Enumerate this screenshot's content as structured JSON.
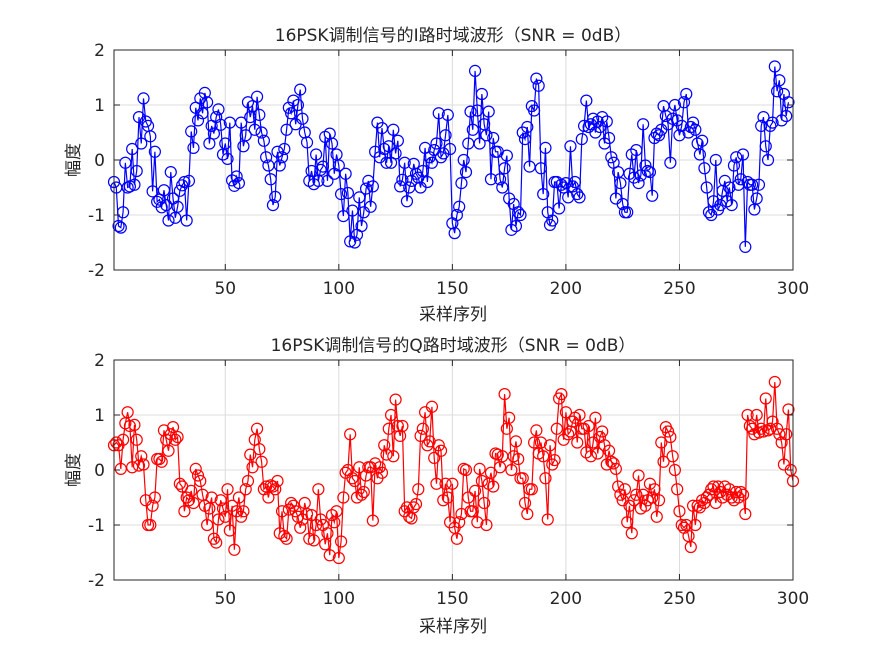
{
  "chart_data": [
    {
      "type": "line",
      "title": "16PSK调制信号的I路时域波形（SNR = 0dB）",
      "xlabel": "采样序列",
      "ylabel": "幅度",
      "xlim": [
        1,
        300
      ],
      "ylim": [
        -2,
        2
      ],
      "xticks": [
        50,
        100,
        150,
        200,
        250,
        300
      ],
      "yticks": [
        -2,
        -1,
        0,
        1,
        2
      ],
      "grid": true,
      "marker": "circle",
      "color": "#0000ff",
      "series": [
        {
          "name": "I路",
          "x_start": 1,
          "x_step": 1,
          "values": [
            -0.4,
            -0.5,
            -1.2,
            -1.23,
            -0.95,
            -0.05,
            -0.5,
            -0.48,
            0.2,
            -0.45,
            -0.2,
            0.78,
            0.3,
            1.12,
            0.7,
            0.62,
            0.43,
            -0.57,
            0.15,
            -0.76,
            -0.72,
            -0.86,
            -0.55,
            -0.82,
            -1.1,
            -0.22,
            -0.7,
            -1.05,
            -0.85,
            -0.56,
            -0.46,
            -0.4,
            -1.1,
            -0.38,
            0.52,
            0.22,
            0.95,
            0.72,
            1.12,
            0.85,
            1.22,
            1.05,
            0.3,
            0.62,
            0.48,
            0.78,
            0.92,
            0.64,
            0.1,
            0.3,
            0.02,
            0.68,
            -0.37,
            -0.47,
            -0.3,
            -0.42,
            0.68,
            0.25,
            0.45,
            1.05,
            0.78,
            0.98,
            0.55,
            1.15,
            0.82,
            0.5,
            0.35,
            0.05,
            -0.1,
            -0.35,
            -0.82,
            -0.67,
            0.15,
            -0.1,
            0.05,
            0.2,
            0.55,
            0.95,
            0.85,
            1.08,
            0.65,
            1.0,
            1.28,
            0.75,
            0.5,
            0.32,
            -0.38,
            -0.2,
            -0.44,
            0.1,
            -0.38,
            -0.18,
            -0.12,
            0.42,
            -0.38,
            0.48,
            0.3,
            -0.25,
            0.1,
            -0.1,
            -0.62,
            -1.02,
            -0.25,
            -0.6,
            -1.48,
            -0.92,
            -1.5,
            -1.36,
            -0.68,
            -1.2,
            -0.95,
            -0.52,
            -0.38,
            -0.85,
            -0.48,
            0.15,
            0.68,
            0.05,
            0.58,
            0.2,
            -0.05,
            0.25,
            -0.05,
            0.55,
            0.12,
            0.35,
            -0.48,
            -0.36,
            -0.05,
            -0.75,
            -0.5,
            -0.38,
            -0.07,
            -0.25,
            -0.32,
            -0.5,
            -0.2,
            0.22,
            -0.4,
            0.05,
            -0.05,
            0.18,
            0.3,
            0.85,
            0.05,
            0.12,
            0.45,
            0.82,
            0.2,
            -1.15,
            -1.33,
            -1.0,
            -0.85,
            -0.42,
            0.0,
            -0.22,
            0.3,
            0.88,
            0.55,
            1.62,
            0.9,
            0.3,
            1.2,
            0.65,
            0.45,
            0.88,
            -0.35,
            0.4,
            0.15,
            0.15,
            -0.35,
            -0.5,
            -0.15,
            0.08,
            -0.7,
            -1.27,
            -0.8,
            -1.2,
            -0.95,
            -1.0,
            0.5,
            0.38,
            0.6,
            -0.12,
            0.98,
            0.9,
            1.48,
            1.35,
            -0.15,
            -0.62,
            0.22,
            -0.95,
            -1.18,
            -1.1,
            -0.4,
            -0.4,
            -0.88,
            -0.45,
            -0.5,
            -0.42,
            -0.68,
            0.25,
            -0.48,
            -0.4,
            -0.62,
            -0.68,
            0.38,
            0.62,
            1.08,
            0.6,
            0.65,
            0.75,
            0.5,
            0.7,
            0.6,
            0.78,
            0.3,
            0.7,
            0.4,
            0.05,
            -0.05,
            -0.7,
            -0.22,
            -0.42,
            -0.8,
            -0.95,
            -0.95,
            -0.25,
            0.1,
            -0.32,
            0.18,
            -0.42,
            -0.28,
            0.65,
            -0.1,
            -0.2,
            -0.22,
            -0.65,
            0.4,
            0.48,
            0.45,
            0.55,
            0.98,
            0.8,
            0.65,
            -0.05,
            0.75,
            1.0,
            0.72,
            0.45,
            0.62,
            1.05,
            1.2,
            0.5,
            0.6,
            0.68,
            0.55,
            0.3,
            0.1,
            0.35,
            -0.15,
            -0.5,
            -0.95,
            -1.0,
            -0.75,
            0.0,
            -0.9,
            -0.82,
            -0.56,
            -0.38,
            -0.75,
            -0.5,
            -0.82,
            -0.1,
            0.05,
            -0.45,
            -0.35,
            0.1,
            -1.58,
            -0.4,
            -0.45,
            -0.45,
            -0.9,
            -0.7,
            -0.45,
            0.62,
            0.78,
            0.25,
            0.0,
            0.62,
            0.68,
            1.7,
            1.25,
            1.45,
            0.72,
            1.2,
            0.8,
            1.05
          ]
        }
      ]
    },
    {
      "type": "line",
      "title": "16PSK调制信号的Q路时域波形（SNR = 0dB）",
      "xlabel": "采样序列",
      "ylabel": "幅度",
      "xlim": [
        1,
        300
      ],
      "ylim": [
        -2,
        2
      ],
      "xticks": [
        50,
        100,
        150,
        200,
        250,
        300
      ],
      "yticks": [
        -2,
        -1,
        0,
        1,
        2
      ],
      "grid": true,
      "marker": "circle",
      "color": "#ff0000",
      "series": [
        {
          "name": "Q路",
          "x_start": 1,
          "x_step": 1,
          "values": [
            0.45,
            0.5,
            0.45,
            0.02,
            0.55,
            0.85,
            1.05,
            0.8,
            0.05,
            0.82,
            0.55,
            0.08,
            0.25,
            0.1,
            -0.55,
            -1.0,
            -1.0,
            -0.65,
            -0.5,
            0.2,
            0.2,
            0.15,
            0.72,
            0.55,
            0.35,
            0.65,
            0.78,
            0.55,
            0.6,
            -0.25,
            -0.3,
            -0.75,
            -0.5,
            -0.55,
            -0.38,
            -0.6,
            0.02,
            -0.1,
            -0.2,
            -0.45,
            -0.65,
            -1.0,
            -0.7,
            -0.5,
            -1.25,
            -1.32,
            -0.9,
            -0.55,
            -0.7,
            -0.85,
            -0.35,
            -1.1,
            -0.65,
            -1.45,
            -0.75,
            -0.5,
            -0.85,
            -0.75,
            -0.35,
            -0.2,
            0.28,
            0.05,
            0.55,
            0.75,
            0.38,
            0.15,
            -0.35,
            -0.3,
            -0.5,
            -0.28,
            -0.3,
            -0.35,
            -0.2,
            -1.15,
            -0.75,
            -1.2,
            -1.25,
            -0.72,
            -0.6,
            -0.65,
            -0.75,
            -0.85,
            -1.05,
            -0.9,
            -0.6,
            -0.8,
            -1.25,
            -0.82,
            -1.28,
            -1.0,
            -0.35,
            -0.9,
            -1.0,
            -1.35,
            -1.15,
            -1.55,
            -0.82,
            -0.95,
            -0.75,
            -1.6,
            -1.3,
            -0.5,
            -0.05,
            0.0,
            0.65,
            -0.15,
            -0.2,
            -0.5,
            0.05,
            -0.45,
            -0.4,
            -0.1,
            0.05,
            0.05,
            -0.92,
            0.12,
            -0.15,
            0.05,
            -0.05,
            0.45,
            0.28,
            0.75,
            1.0,
            0.25,
            1.28,
            0.8,
            0.62,
            0.8,
            -0.75,
            -0.68,
            -0.85,
            -0.88,
            -0.68,
            -0.62,
            -0.35,
            0.62,
            0.75,
            1.05,
            0.45,
            0.52,
            1.15,
            0.22,
            -0.25,
            0.45,
            0.35,
            -0.55,
            -0.25,
            -0.5,
            -0.95,
            -0.25,
            -1.05,
            -1.25,
            -0.95,
            -0.8,
            0.02,
            0.0,
            -0.5,
            -0.75,
            -0.75,
            -0.38,
            -0.95,
            0.02,
            -0.2,
            -0.6,
            -1.0,
            -0.25,
            -0.05,
            -0.3,
            0.3,
            0.28,
            0.05,
            0.25,
            1.38,
            0.75,
            0.95,
            0.0,
            0.25,
            0.52,
            0.2,
            -0.15,
            -0.15,
            -0.6,
            -0.8,
            -0.35,
            -0.35,
            0.5,
            0.72,
            0.3,
            0.5,
            0.25,
            -0.15,
            -0.9,
            0.45,
            0.1,
            0.18,
            0.75,
            1.3,
            1.38,
            0.55,
            1.05,
            0.65,
            0.7,
            0.88,
            0.95,
            0.5,
            1.0,
            0.75,
            0.75,
            0.32,
            0.8,
            0.25,
            0.5,
            0.95,
            0.3,
            0.6,
            0.7,
            0.45,
            0.1,
            0.35,
            0.15,
            0.12,
            0.02,
            -0.3,
            -0.45,
            -0.55,
            -0.35,
            -0.95,
            -0.65,
            -1.15,
            -0.55,
            -0.45,
            -0.1,
            -0.7,
            -0.45,
            -0.65,
            -0.55,
            -0.25,
            -0.5,
            -0.35,
            -0.85,
            -0.55,
            0.5,
            0.15,
            0.78,
            0.7,
            0.6,
            0.25,
            0.0,
            -0.35,
            -0.75,
            -1.0,
            -1.05,
            -1.0,
            -1.2,
            -1.4,
            -0.65,
            -1.0,
            -0.65,
            -0.68,
            -0.55,
            -0.6,
            -0.5,
            -0.45,
            -0.35,
            -0.3,
            -0.6,
            -0.3,
            -0.4,
            -0.5,
            -0.3,
            -0.45,
            -0.35,
            -0.5,
            -0.55,
            -0.4,
            -0.5,
            -0.4,
            -0.45,
            -0.8,
            1.0,
            0.8,
            0.75,
            0.65,
            1.0,
            0.68,
            0.75,
            0.7,
            1.3,
            0.72,
            0.75,
            0.88,
            1.6,
            0.75,
            0.65,
            0.5,
            0.1,
            0.65,
            1.1,
            0.0,
            -0.2
          ]
        }
      ]
    }
  ]
}
